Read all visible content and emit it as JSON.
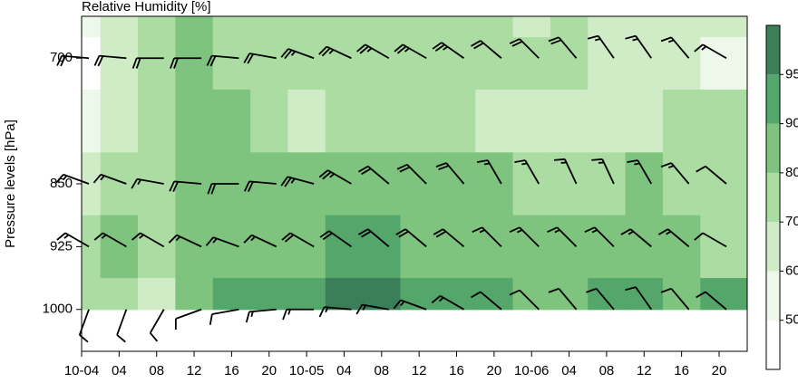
{
  "chart_data": {
    "type": "contour",
    "title": "Relative Humidity [%]",
    "ylabel": "Pressure levels [hPa]",
    "x": [
      0,
      4,
      8,
      12,
      16,
      20,
      24,
      28,
      32,
      36,
      40,
      44,
      48,
      52,
      56,
      60,
      64,
      68
    ],
    "xlim": [
      0,
      71
    ],
    "xticks": [
      {
        "value": 0,
        "label": "10-04"
      },
      {
        "value": 4,
        "label": "04"
      },
      {
        "value": 8,
        "label": "08"
      },
      {
        "value": 12,
        "label": "12"
      },
      {
        "value": 16,
        "label": "16"
      },
      {
        "value": 20,
        "label": "20"
      },
      {
        "value": 24,
        "label": "10-05"
      },
      {
        "value": 28,
        "label": "04"
      },
      {
        "value": 32,
        "label": "08"
      },
      {
        "value": 36,
        "label": "12"
      },
      {
        "value": 40,
        "label": "16"
      },
      {
        "value": 44,
        "label": "20"
      },
      {
        "value": 48,
        "label": "10-06"
      },
      {
        "value": 52,
        "label": "04"
      },
      {
        "value": 56,
        "label": "08"
      },
      {
        "value": 60,
        "label": "12"
      },
      {
        "value": 64,
        "label": "16"
      },
      {
        "value": 68,
        "label": "20"
      }
    ],
    "levels": [
      650,
      700,
      775,
      850,
      925,
      1000
    ],
    "ylim": [
      650,
      1050
    ],
    "yticks": [
      700,
      850,
      925,
      1000
    ],
    "values": [
      [
        50,
        60,
        75,
        80,
        70,
        75,
        70,
        75,
        75,
        75,
        75,
        70,
        65,
        70,
        65,
        60,
        60,
        60
      ],
      [
        45,
        60,
        75,
        85,
        75,
        75,
        70,
        75,
        75,
        70,
        70,
        70,
        70,
        70,
        65,
        65,
        60,
        55
      ],
      [
        50,
        65,
        70,
        85,
        80,
        75,
        65,
        70,
        75,
        75,
        70,
        65,
        60,
        65,
        65,
        65,
        70,
        70
      ],
      [
        60,
        75,
        70,
        85,
        80,
        80,
        80,
        85,
        85,
        85,
        80,
        80,
        75,
        75,
        75,
        80,
        75,
        70
      ],
      [
        70,
        80,
        75,
        85,
        85,
        85,
        85,
        90,
        90,
        85,
        85,
        85,
        80,
        80,
        80,
        85,
        80,
        75
      ],
      [
        75,
        75,
        65,
        80,
        90,
        90,
        90,
        95,
        95,
        90,
        90,
        90,
        85,
        85,
        90,
        90,
        85,
        90
      ]
    ],
    "colorbar": {
      "levels": [
        50,
        60,
        70,
        80,
        90,
        95
      ],
      "colors": [
        "#ffffff",
        "#eef8ea",
        "#d0ecc7",
        "#abdca2",
        "#7ec47e",
        "#55a66a",
        "#3b7f58"
      ]
    },
    "wind": {
      "levels": [
        700,
        850,
        925,
        1000
      ],
      "speed": [
        [
          20,
          20,
          20,
          20,
          20,
          20,
          25,
          25,
          25,
          25,
          25,
          20,
          20,
          20,
          15,
          15,
          15,
          15
        ],
        [
          15,
          15,
          15,
          20,
          20,
          20,
          25,
          25,
          20,
          20,
          20,
          15,
          15,
          15,
          15,
          15,
          15,
          10
        ],
        [
          15,
          15,
          15,
          15,
          15,
          15,
          20,
          20,
          20,
          20,
          20,
          15,
          15,
          15,
          15,
          15,
          15,
          10
        ],
        [
          10,
          10,
          10,
          10,
          10,
          15,
          15,
          15,
          15,
          15,
          15,
          10,
          10,
          10,
          10,
          10,
          10,
          10
        ]
      ],
      "direction": [
        [
          275,
          275,
          270,
          270,
          275,
          280,
          290,
          295,
          300,
          300,
          305,
          310,
          315,
          320,
          325,
          325,
          320,
          300
        ],
        [
          290,
          290,
          280,
          275,
          270,
          275,
          285,
          300,
          310,
          315,
          320,
          330,
          330,
          335,
          335,
          330,
          320,
          310
        ],
        [
          300,
          300,
          300,
          295,
          290,
          295,
          300,
          305,
          310,
          310,
          310,
          315,
          315,
          315,
          315,
          310,
          310,
          300
        ],
        [
          200,
          200,
          210,
          250,
          260,
          265,
          270,
          275,
          280,
          290,
          300,
          310,
          315,
          320,
          320,
          325,
          320,
          310
        ]
      ]
    }
  }
}
